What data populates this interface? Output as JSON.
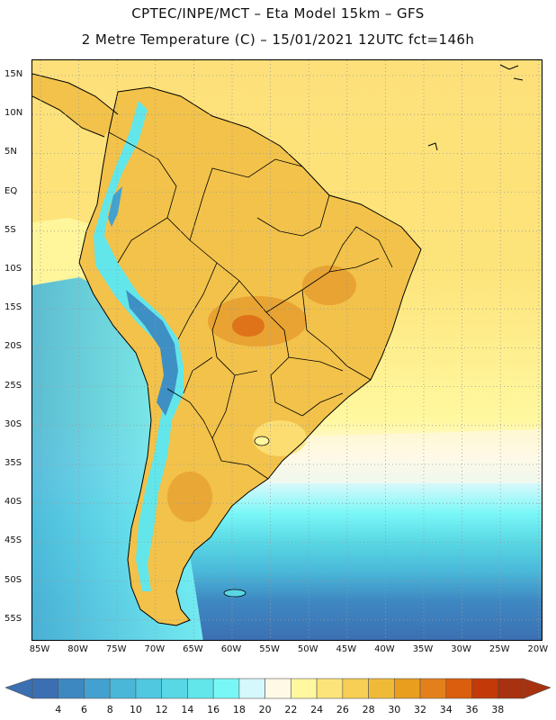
{
  "header": {
    "title_line1": "CPTEC/INPE/MCT –  Eta Model 15km – GFS",
    "title_line2": "2 Metre Temperature (C) – 15/01/2021 12UTC fct=146h"
  },
  "map": {
    "lat_labels": [
      "15N",
      "10N",
      "5N",
      "EQ",
      "5S",
      "10S",
      "15S",
      "20S",
      "25S",
      "30S",
      "35S",
      "40S",
      "45S",
      "50S",
      "55S"
    ],
    "lon_labels": [
      "85W",
      "80W",
      "75W",
      "70W",
      "65W",
      "60W",
      "55W",
      "50W",
      "45W",
      "40W",
      "35W",
      "30W",
      "25W",
      "20W"
    ],
    "colors": {
      "ocean_warm": "#FDE07A",
      "land_warm": "#F2C24A",
      "land_hot": "#E8A332",
      "andes_cold": "#3E8FC4",
      "coast_line": "#000000",
      "grid": "#9A9A9A"
    }
  },
  "colorbar": {
    "ticks": [
      "4",
      "6",
      "8",
      "10",
      "12",
      "14",
      "16",
      "18",
      "20",
      "22",
      "24",
      "26",
      "28",
      "30",
      "32",
      "34",
      "36",
      "38"
    ],
    "colors": [
      "#3B6FB2",
      "#3E88C2",
      "#43A1CF",
      "#4AB7D9",
      "#50C8DF",
      "#58D7E4",
      "#62E6EA",
      "#79F7F7",
      "#D4F8FB",
      "#FFF9E6",
      "#FFF8A0",
      "#FDE47A",
      "#F7CF54",
      "#F0BA39",
      "#E99E1E",
      "#E4801B",
      "#DA5E0E",
      "#C33A08",
      "#A8320F"
    ],
    "under_color": "#3B6FB2",
    "over_color": "#A8320F"
  }
}
